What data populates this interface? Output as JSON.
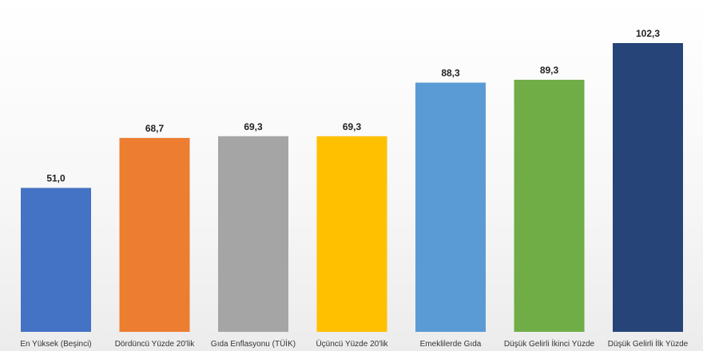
{
  "chart_data": {
    "type": "bar",
    "categories": [
      "En Yüksek (Beşinci)",
      "Dördüncü Yüzde 20'lik",
      "Gıda Enflasyonu (TÜİK)",
      "Üçüncü Yüzde 20'lik",
      "Emeklilerde Gıda",
      "Düşük Gelirli İkinci Yüzde",
      "Düşük Gelirli İlk Yüzde"
    ],
    "values": [
      51.0,
      68.7,
      69.3,
      69.3,
      88.3,
      89.3,
      102.3
    ],
    "value_labels": [
      "51,0",
      "68,7",
      "69,3",
      "69,3",
      "88,3",
      "89,3",
      "102,3"
    ],
    "colors": [
      "#4472C4",
      "#ED7D31",
      "#A5A5A5",
      "#FFC000",
      "#5B9BD5",
      "#70AD47",
      "#264478"
    ],
    "title": "",
    "xlabel": "",
    "ylabel": "",
    "ylim": [
      0,
      102.3
    ],
    "grid": false,
    "legend": "none"
  }
}
